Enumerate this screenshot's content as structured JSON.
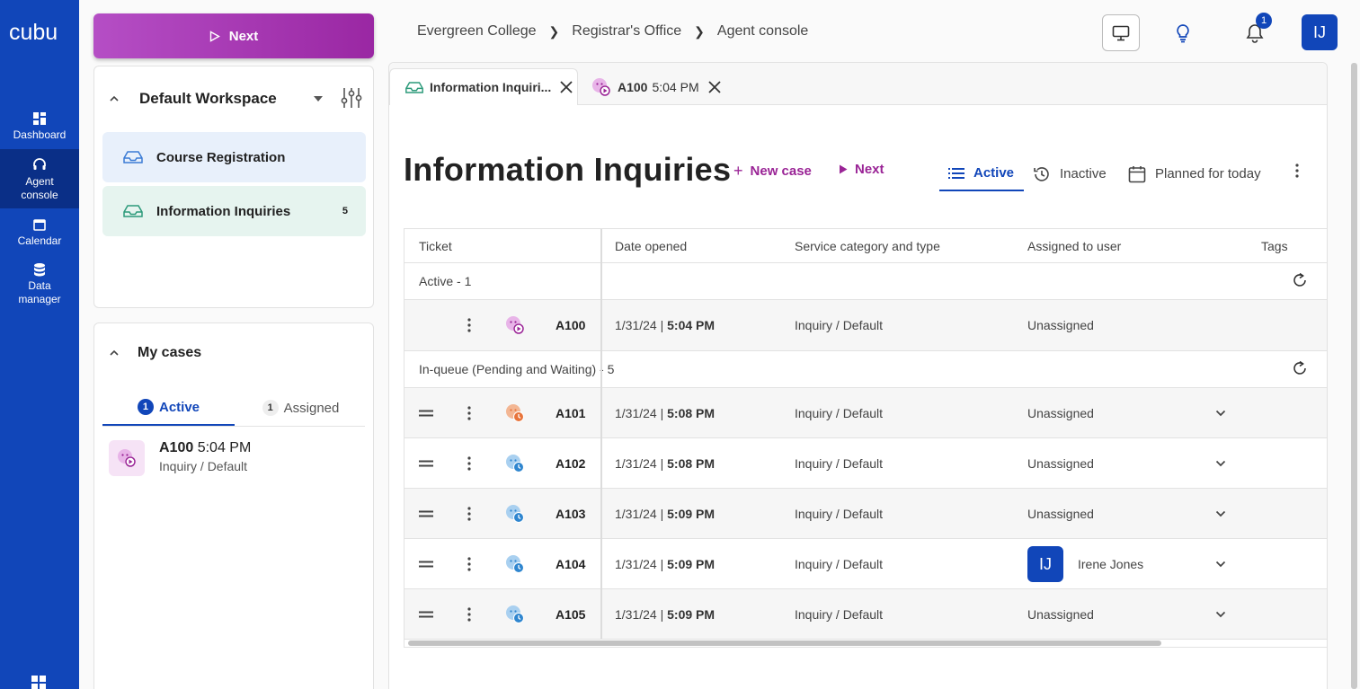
{
  "app": {
    "logo": "cubu"
  },
  "rail": [
    {
      "label": "Dashboard",
      "icon": "dashboard-icon"
    },
    {
      "label": "Agent\nconsole",
      "icon": "headset-icon",
      "active": true
    },
    {
      "label": "Calendar",
      "icon": "calendar-icon"
    },
    {
      "label": "Data\nmanager",
      "icon": "database-icon"
    }
  ],
  "next_button": {
    "label": "Next"
  },
  "workspace": {
    "title": "Default Workspace",
    "queues": [
      {
        "label": "Course Registration",
        "count": ""
      },
      {
        "label": "Information Inquiries",
        "count": "5"
      }
    ]
  },
  "my_cases": {
    "title": "My cases",
    "tabs": [
      {
        "count": "1",
        "label": "Active"
      },
      {
        "count": "1",
        "label": "Assigned"
      }
    ],
    "entry": {
      "ticket": "A100",
      "time": "5:04 PM",
      "service": "Inquiry / Default"
    }
  },
  "breadcrumb": [
    "Evergreen College",
    "Registrar's Office",
    "Agent console"
  ],
  "notifications": {
    "count": "1"
  },
  "user": {
    "initials": "IJ"
  },
  "doc_tabs": [
    {
      "label": "Information Inquiri...",
      "icon": "inbox-icon"
    },
    {
      "ticket": "A100",
      "time": "5:04 PM",
      "icon": "chat-play-icon"
    }
  ],
  "page": {
    "title": "Information Inquiries",
    "actions": {
      "new_case": "New case",
      "next": "Next"
    },
    "views": [
      "Active",
      "Inactive",
      "Planned for today"
    ]
  },
  "table": {
    "headers": [
      "Ticket",
      "Date opened",
      "Service category and type",
      "Assigned to user",
      "Tags"
    ],
    "groups": [
      {
        "label": "Active - 1",
        "rows": [
          {
            "ticket": "A100",
            "date": "1/31/24 | ",
            "time": "5:04 PM",
            "service": "Inquiry / Default",
            "user": "Unassigned",
            "status": "active",
            "color": "#c862c8"
          }
        ]
      },
      {
        "label": "In-queue (Pending and Waiting) - 5",
        "rows": [
          {
            "ticket": "A101",
            "date": "1/31/24 | ",
            "time": "5:08 PM",
            "service": "Inquiry / Default",
            "user": "Unassigned",
            "status": "pending",
            "color": "#e8743b"
          },
          {
            "ticket": "A102",
            "date": "1/31/24 | ",
            "time": "5:08 PM",
            "service": "Inquiry / Default",
            "user": "Unassigned",
            "status": "waiting",
            "color": "#2f86cf"
          },
          {
            "ticket": "A103",
            "date": "1/31/24 | ",
            "time": "5:09 PM",
            "service": "Inquiry / Default",
            "user": "Unassigned",
            "status": "waiting",
            "color": "#2f86cf"
          },
          {
            "ticket": "A104",
            "date": "1/31/24 | ",
            "time": "5:09 PM",
            "service": "Inquiry / Default",
            "user": "Irene Jones",
            "user_initials": "IJ",
            "status": "waiting",
            "color": "#2f86cf"
          },
          {
            "ticket": "A105",
            "date": "1/31/24 | ",
            "time": "5:09 PM",
            "service": "Inquiry / Default",
            "user": "Unassigned",
            "status": "waiting",
            "color": "#2f86cf"
          }
        ]
      }
    ]
  },
  "colors": {
    "brand": "#1146b9",
    "accent": "#9a2496"
  }
}
